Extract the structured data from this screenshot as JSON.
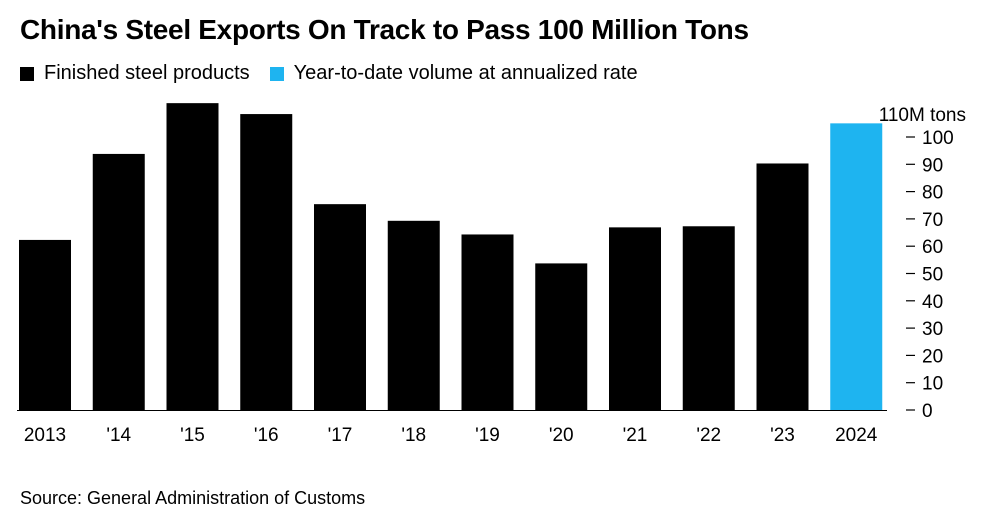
{
  "title": "China's Steel Exports On Track to Pass 100 Million Tons",
  "legend": [
    {
      "label": "Finished steel products",
      "color": "#000000"
    },
    {
      "label": "Year-to-date volume at annualized rate",
      "color": "#1eb4f0"
    }
  ],
  "source": "Source: General Administration of Customs",
  "chart_data": {
    "type": "bar",
    "categories": [
      "2013",
      "'14",
      "'15",
      "'16",
      "'17",
      "'18",
      "'19",
      "'20",
      "'21",
      "'22",
      "'23",
      "2024"
    ],
    "series": [
      {
        "name": "Finished steel products",
        "color": "#000000",
        "values": [
          62.3,
          93.8,
          112.4,
          108.4,
          75.4,
          69.3,
          64.3,
          53.7,
          66.9,
          67.3,
          90.3,
          null
        ]
      },
      {
        "name": "Year-to-date volume at annualized rate",
        "color": "#1eb4f0",
        "values": [
          null,
          null,
          null,
          null,
          null,
          null,
          null,
          null,
          null,
          null,
          null,
          105.0
        ]
      }
    ],
    "ylim": [
      0,
      113
    ],
    "yticks": [
      0,
      10,
      20,
      30,
      40,
      50,
      60,
      70,
      80,
      90,
      100
    ],
    "y_unit_label": "110M tons",
    "y_axis_side": "right",
    "grid": false
  }
}
